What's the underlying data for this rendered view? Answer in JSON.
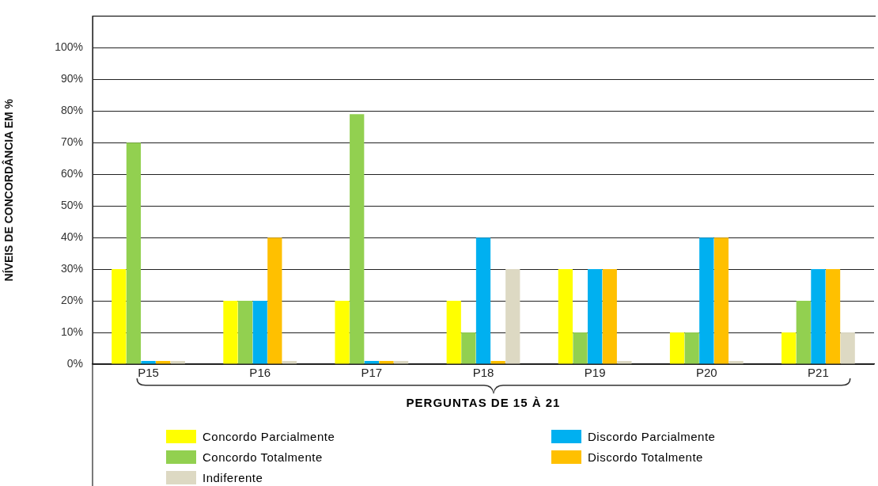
{
  "chart_data": {
    "type": "bar",
    "categories": [
      "P15",
      "P16",
      "P17",
      "P18",
      "P19",
      "P20",
      "P21"
    ],
    "series": [
      {
        "name": "Concordo Parcialmente",
        "color": "#ffff00",
        "values": [
          30,
          20,
          20,
          20,
          30,
          10,
          10
        ]
      },
      {
        "name": "Concordo Totalmente",
        "color": "#92d050",
        "values": [
          70,
          20,
          79,
          10,
          10,
          10,
          20
        ]
      },
      {
        "name": "Discordo Parcialmente",
        "color": "#00b0f0",
        "values": [
          1,
          20,
          1,
          40,
          30,
          40,
          30
        ]
      },
      {
        "name": "Discordo Totalmente",
        "color": "#ffc000",
        "values": [
          1,
          40,
          1,
          1,
          30,
          40,
          30
        ]
      },
      {
        "name": "Indiferente",
        "color": "#ddd9c3",
        "values": [
          1,
          1,
          1,
          30,
          1,
          1,
          10
        ]
      }
    ],
    "xlabel": "PERGUNTAS DE 15 À 21",
    "ylabel": "NÍVEIS DE CONCORDÂNCIA EM %",
    "ylim": [
      0,
      110
    ],
    "yticks": [
      {
        "value": 0,
        "label": "0%"
      },
      {
        "value": 10,
        "label": "10%"
      },
      {
        "value": 20,
        "label": "20%"
      },
      {
        "value": 30,
        "label": "30%"
      },
      {
        "value": 40,
        "label": "40%"
      },
      {
        "value": 50,
        "label": "50%"
      },
      {
        "value": 60,
        "label": "60%"
      },
      {
        "value": 70,
        "label": "70%"
      },
      {
        "value": 80,
        "label": "80%"
      },
      {
        "value": 90,
        "label": "90%"
      },
      {
        "value": 100,
        "label": "100%"
      }
    ],
    "grid": "y",
    "legend": "bottom"
  }
}
